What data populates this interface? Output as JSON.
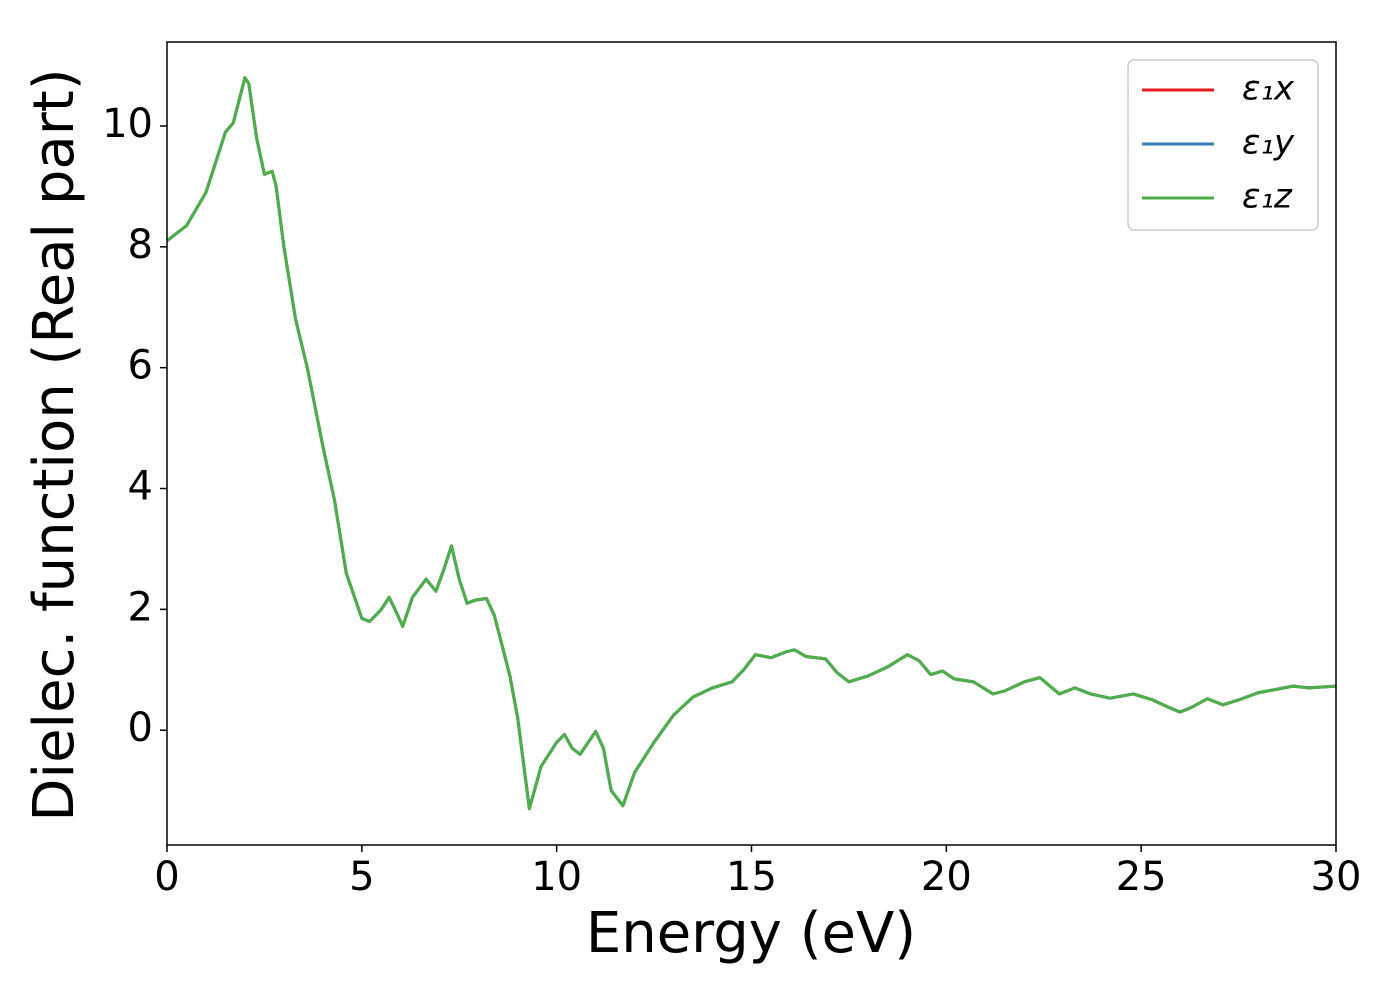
{
  "chart_data": {
    "type": "line",
    "xlabel": "Energy (eV)",
    "ylabel": "Dielec. function (Real part)",
    "x": [
      0,
      0.5,
      1.0,
      1.5,
      1.7,
      2.0,
      2.1,
      2.3,
      2.5,
      2.7,
      2.8,
      3.0,
      3.3,
      3.6,
      4.0,
      4.3,
      4.6,
      5.0,
      5.2,
      5.5,
      5.7,
      5.85,
      6.05,
      6.3,
      6.65,
      6.9,
      7.1,
      7.3,
      7.5,
      7.7,
      7.9,
      8.2,
      8.4,
      8.8,
      9.0,
      9.3,
      9.6,
      10.0,
      10.2,
      10.4,
      10.6,
      11.0,
      11.2,
      11.4,
      11.7,
      12.0,
      12.5,
      13.0,
      13.5,
      14.0,
      14.5,
      14.8,
      15.1,
      15.5,
      15.9,
      16.1,
      16.4,
      16.9,
      17.2,
      17.5,
      18.0,
      18.5,
      19.0,
      19.3,
      19.6,
      19.9,
      20.2,
      20.7,
      21.2,
      21.5,
      22.0,
      22.4,
      22.9,
      23.3,
      23.7,
      24.2,
      24.8,
      25.3,
      25.7,
      26.0,
      26.3,
      26.7,
      27.1,
      27.5,
      28.0,
      28.5,
      28.9,
      29.3,
      30
    ],
    "series": [
      {
        "name": "ε₁x",
        "color": "#e41a1c",
        "values": [
          8.1,
          8.35,
          8.9,
          9.9,
          10.05,
          10.8,
          10.7,
          9.8,
          9.2,
          9.25,
          9.0,
          8.0,
          6.8,
          6.0,
          4.7,
          3.8,
          2.6,
          1.85,
          1.8,
          2.0,
          2.2,
          2.0,
          1.72,
          2.2,
          2.5,
          2.3,
          2.65,
          3.05,
          2.5,
          2.1,
          2.15,
          2.18,
          1.9,
          0.9,
          0.2,
          -1.3,
          -0.6,
          -0.2,
          -0.07,
          -0.3,
          -0.4,
          -0.02,
          -0.3,
          -1.0,
          -1.25,
          -0.7,
          -0.2,
          0.25,
          0.55,
          0.7,
          0.8,
          1.0,
          1.25,
          1.2,
          1.3,
          1.33,
          1.22,
          1.18,
          0.95,
          0.8,
          0.9,
          1.05,
          1.25,
          1.15,
          0.92,
          0.98,
          0.85,
          0.8,
          0.6,
          0.65,
          0.8,
          0.87,
          0.6,
          0.7,
          0.6,
          0.53,
          0.6,
          0.5,
          0.38,
          0.3,
          0.38,
          0.52,
          0.42,
          0.5,
          0.62,
          0.68,
          0.73,
          0.7,
          0.73
        ]
      },
      {
        "name": "ε₁y",
        "color": "#377eb8",
        "values": [
          8.1,
          8.35,
          8.9,
          9.9,
          10.05,
          10.8,
          10.7,
          9.8,
          9.2,
          9.25,
          9.0,
          8.0,
          6.8,
          6.0,
          4.7,
          3.8,
          2.6,
          1.85,
          1.8,
          2.0,
          2.2,
          2.0,
          1.72,
          2.2,
          2.5,
          2.3,
          2.65,
          3.05,
          2.5,
          2.1,
          2.15,
          2.18,
          1.9,
          0.9,
          0.2,
          -1.3,
          -0.6,
          -0.2,
          -0.07,
          -0.3,
          -0.4,
          -0.02,
          -0.3,
          -1.0,
          -1.25,
          -0.7,
          -0.2,
          0.25,
          0.55,
          0.7,
          0.8,
          1.0,
          1.25,
          1.2,
          1.3,
          1.33,
          1.22,
          1.18,
          0.95,
          0.8,
          0.9,
          1.05,
          1.25,
          1.15,
          0.92,
          0.98,
          0.85,
          0.8,
          0.6,
          0.65,
          0.8,
          0.87,
          0.6,
          0.7,
          0.6,
          0.53,
          0.6,
          0.5,
          0.38,
          0.3,
          0.38,
          0.52,
          0.42,
          0.5,
          0.62,
          0.68,
          0.73,
          0.7,
          0.73
        ]
      },
      {
        "name": "ε₁z",
        "color": "#4daf4a",
        "values": [
          8.1,
          8.35,
          8.9,
          9.9,
          10.05,
          10.8,
          10.7,
          9.8,
          9.2,
          9.25,
          9.0,
          8.0,
          6.8,
          6.0,
          4.7,
          3.8,
          2.6,
          1.85,
          1.8,
          2.0,
          2.2,
          2.0,
          1.72,
          2.2,
          2.5,
          2.3,
          2.65,
          3.05,
          2.5,
          2.1,
          2.15,
          2.18,
          1.9,
          0.9,
          0.2,
          -1.3,
          -0.6,
          -0.2,
          -0.07,
          -0.3,
          -0.4,
          -0.02,
          -0.3,
          -1.0,
          -1.25,
          -0.7,
          -0.2,
          0.25,
          0.55,
          0.7,
          0.8,
          1.0,
          1.25,
          1.2,
          1.3,
          1.33,
          1.22,
          1.18,
          0.95,
          0.8,
          0.9,
          1.05,
          1.25,
          1.15,
          0.92,
          0.98,
          0.85,
          0.8,
          0.6,
          0.65,
          0.8,
          0.87,
          0.6,
          0.7,
          0.6,
          0.53,
          0.6,
          0.5,
          0.38,
          0.3,
          0.38,
          0.52,
          0.42,
          0.5,
          0.62,
          0.68,
          0.73,
          0.7,
          0.73
        ]
      }
    ],
    "xlim": [
      0,
      30
    ],
    "xticks": [
      0,
      5,
      10,
      15,
      20,
      25,
      30
    ],
    "ylim": [
      -1.9,
      11.39
    ],
    "yticks": [
      0,
      2,
      4,
      6,
      8,
      10
    ],
    "grid": false,
    "legend": "upper right"
  }
}
